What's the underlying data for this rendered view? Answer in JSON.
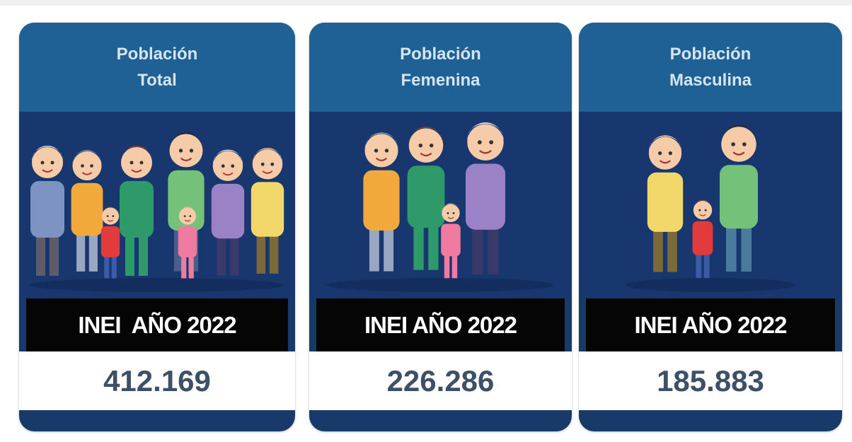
{
  "cards": [
    {
      "title": [
        "Población",
        "Total"
      ],
      "source": "INEI  AÑO 2022",
      "value": "412.169"
    },
    {
      "title": [
        "Población",
        "Femenina"
      ],
      "source": "INEI AÑO 2022",
      "value": "226.286"
    },
    {
      "title": [
        "Población",
        "Masculina"
      ],
      "source": "INEI AÑO 2022",
      "value": "185.883"
    }
  ]
}
